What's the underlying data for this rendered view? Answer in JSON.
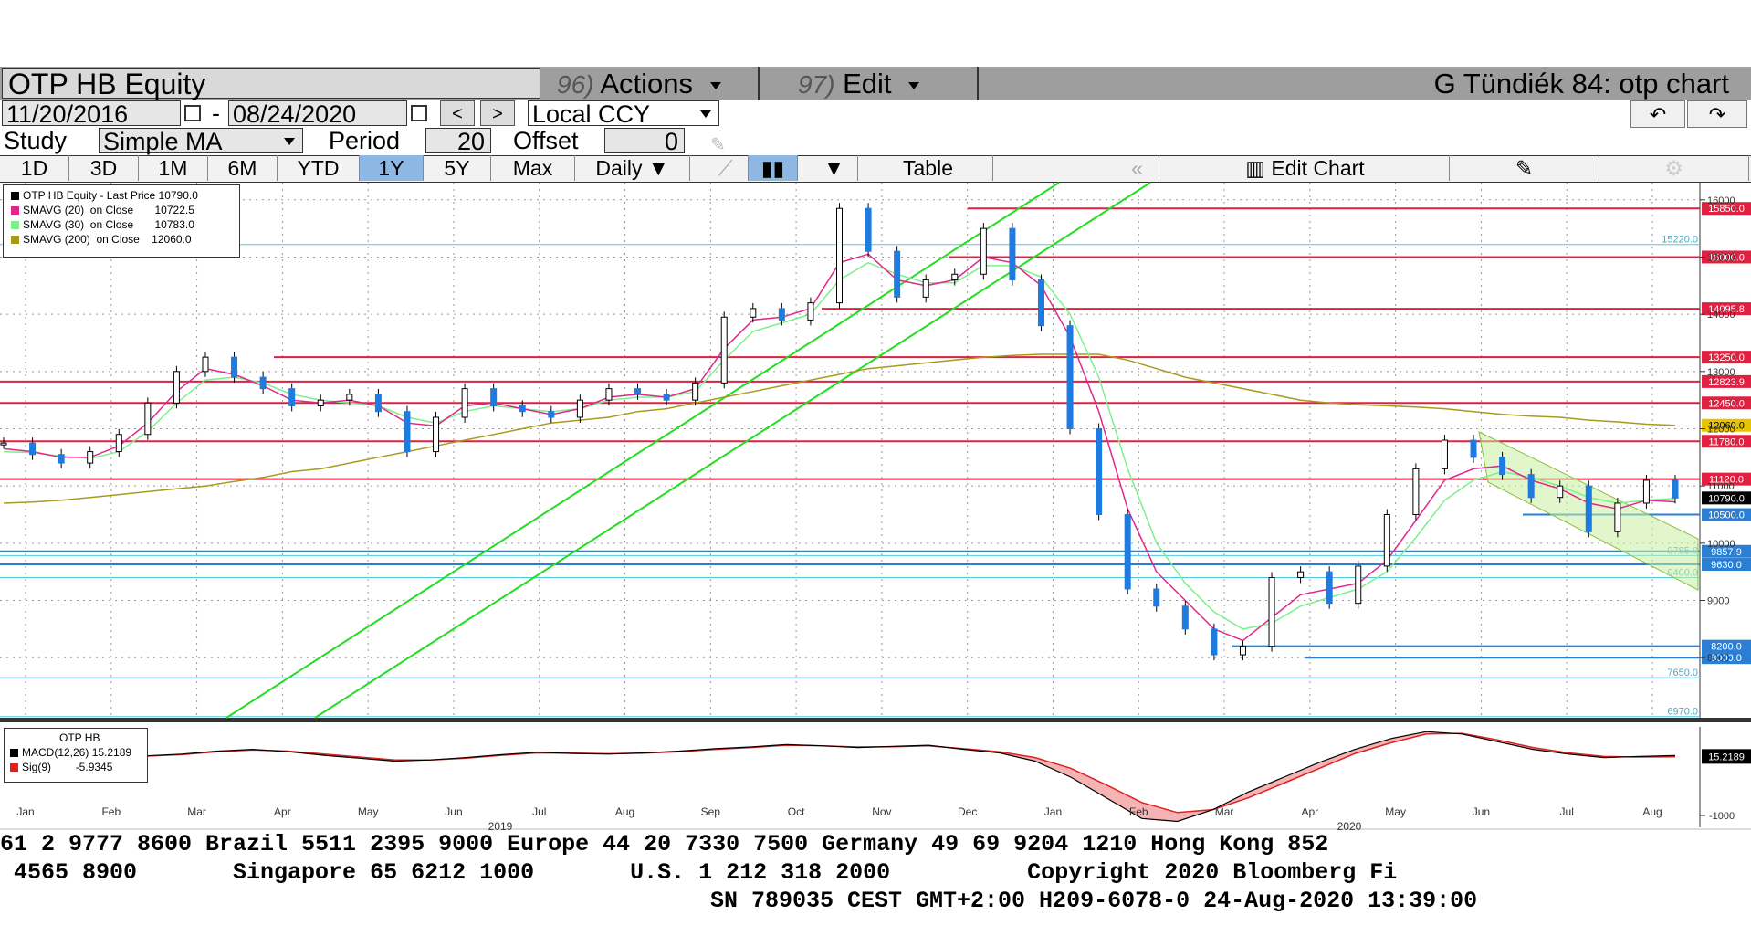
{
  "header": {
    "ticker": "OTP HB Equity",
    "actions_num": "96)",
    "actions_label": "Actions",
    "edit_num": "97)",
    "edit_label": "Edit",
    "title": "G Tündiék 84: otp chart"
  },
  "range": {
    "start": "11/20/2016",
    "dash": "-",
    "end": "08/24/2020",
    "prev": "<",
    "next": ">",
    "currency": "Local CCY"
  },
  "study": {
    "label": "Study",
    "value": "Simple MA",
    "period_label": "Period",
    "period": "20",
    "offset_label": "Offset",
    "offset": "0"
  },
  "tabs": [
    "1D",
    "3D",
    "1M",
    "6M",
    "YTD",
    "1Y",
    "5Y",
    "Max"
  ],
  "active_tab": "1Y",
  "frequency": "Daily",
  "table_label": "Table",
  "edit_chart_label": "Edit Chart",
  "legend": [
    {
      "label": "OTP HB Equity - Last Price",
      "value": "10790.0",
      "color": "#000000"
    },
    {
      "label": "SMAVG (20)  on Close",
      "value": "10722.5",
      "color": "#e0288c"
    },
    {
      "label": "SMAVG (30)  on Close",
      "value": "10783.0",
      "color": "#7cf08a"
    },
    {
      "label": "SMAVG (200)  on Close",
      "value": "12060.0",
      "color": "#a89a1e"
    }
  ],
  "macd_legend": {
    "title": "OTP HB",
    "rows": [
      {
        "label": "MACD(12,26)",
        "value": "15.2189",
        "color": "#000000"
      },
      {
        "label": "Sig(9)",
        "value": "-5.9345",
        "color": "#e02020"
      }
    ]
  },
  "chart_data": {
    "type": "line",
    "title": "OTP HB Equity",
    "x_labels": [
      "Jan",
      "Feb",
      "Mar",
      "Apr",
      "May",
      "Jun",
      "Jul",
      "Aug",
      "Sep",
      "Oct",
      "Nov",
      "Dec",
      "Jan",
      "Feb",
      "Mar",
      "Apr",
      "May",
      "Jun",
      "Jul",
      "Aug"
    ],
    "year_labels": [
      "2019",
      "2020"
    ],
    "y_ticks": [
      "16000",
      "15000",
      "14000",
      "13000",
      "12000",
      "11000",
      "10000",
      "9000",
      "8000"
    ],
    "ylim": [
      6950,
      16300
    ],
    "price_series": {
      "name": "OTP HB Equity - Last Price",
      "values": [
        11750,
        11550,
        11400,
        11600,
        11900,
        12450,
        13000,
        13250,
        12900,
        12700,
        12400,
        12500,
        12600,
        12300,
        11600,
        12200,
        12700,
        12400,
        12300,
        12200,
        12500,
        12700,
        12600,
        12500,
        12800,
        13950,
        14100,
        13900,
        14200,
        15850,
        15100,
        14300,
        14600,
        14700,
        15500,
        14600,
        13800,
        12000,
        10500,
        9200,
        8900,
        8500,
        8050,
        8200,
        9400,
        9500,
        8950,
        9600,
        10500,
        11300,
        11800,
        11500,
        11200,
        10800,
        11000,
        10200,
        10700,
        11100,
        10790
      ]
    },
    "sma20_values": [
      11650,
      11600,
      11500,
      11500,
      11700,
      12100,
      12650,
      13050,
      12950,
      12750,
      12500,
      12450,
      12500,
      12400,
      12100,
      12050,
      12400,
      12450,
      12350,
      12250,
      12350,
      12550,
      12600,
      12550,
      12700,
      13400,
      13900,
      13950,
      14100,
      14900,
      15050,
      14600,
      14500,
      14600,
      15000,
      14900,
      14500,
      13600,
      12300,
      10600,
      9500,
      9000,
      8500,
      8300,
      8700,
      9100,
      9200,
      9300,
      9700,
      10400,
      11100,
      11300,
      11350,
      11100,
      10950,
      10700,
      10600,
      10750,
      10722.5
    ],
    "sma30_values": [
      11600,
      11580,
      11520,
      11480,
      11600,
      11950,
      12450,
      12850,
      12900,
      12800,
      12600,
      12500,
      12450,
      12400,
      12200,
      12100,
      12300,
      12400,
      12350,
      12300,
      12350,
      12500,
      12550,
      12550,
      12650,
      13200,
      13700,
      13850,
      14000,
      14600,
      14900,
      14700,
      14550,
      14550,
      14850,
      14850,
      14650,
      14000,
      12900,
      11300,
      10000,
      9300,
      8800,
      8500,
      8600,
      8900,
      9050,
      9200,
      9500,
      10100,
      10750,
      11100,
      11250,
      11150,
      11000,
      10800,
      10700,
      10750,
      10783
    ],
    "sma200_values": [
      10700,
      10720,
      10750,
      10800,
      10850,
      10900,
      10950,
      11000,
      11080,
      11150,
      11250,
      11300,
      11400,
      11500,
      11600,
      11700,
      11800,
      11900,
      12000,
      12100,
      12150,
      12200,
      12300,
      12350,
      12450,
      12550,
      12650,
      12750,
      12850,
      12950,
      13050,
      13100,
      13150,
      13200,
      13250,
      13280,
      13300,
      13300,
      13300,
      13200,
      13050,
      12900,
      12800,
      12700,
      12600,
      12500,
      12450,
      12420,
      12400,
      12380,
      12350,
      12300,
      12250,
      12220,
      12200,
      12150,
      12120,
      12080,
      12060
    ],
    "horizontal_levels_red": [
      "15850.0",
      "15000.0",
      "14095.8",
      "13250.0",
      "12823.9",
      "12450.0",
      "11780.0",
      "11120.0"
    ],
    "horizontal_levels_blue": [
      "10500.0",
      "9857.9",
      "9630.0",
      "8200.0",
      "8000.0"
    ],
    "light_levels": [
      "15220.0",
      "9785.0",
      "9400.0",
      "7650.0",
      "6970.0"
    ],
    "last_price_label": "10790.0",
    "sma200_label": "12060.0",
    "macd": {
      "name": "MACD(12,26)",
      "values": [
        10,
        40,
        90,
        120,
        80,
        20,
        -30,
        -80,
        -60,
        -20,
        30,
        70,
        50,
        40,
        60,
        90,
        130,
        160,
        200,
        180,
        150,
        170,
        190,
        120,
        60,
        -80,
        -350,
        -700,
        -1050,
        -1100,
        -900,
        -600,
        -350,
        -100,
        120,
        300,
        420,
        380,
        250,
        120,
        40,
        -20,
        0,
        15.2189
      ],
      "signal": [
        5,
        30,
        80,
        110,
        90,
        40,
        -10,
        -60,
        -60,
        -30,
        20,
        60,
        55,
        45,
        55,
        80,
        120,
        150,
        190,
        180,
        160,
        165,
        180,
        130,
        80,
        -20,
        -200,
        -480,
        -780,
        -950,
        -900,
        -700,
        -450,
        -200,
        50,
        230,
        380,
        390,
        280,
        150,
        60,
        0,
        -10,
        -5.9345
      ],
      "y_ticks": [
        "-1000"
      ],
      "last_label": "15.2189"
    }
  },
  "footer": {
    "line1": "61 2 9777 8600 Brazil 5511 2395 9000 Europe 44 20 7330 7500 Germany 49 69 9204 1210 Hong Kong 852",
    "line2": " 4565 8900       Singapore 65 6212 1000       U.S. 1 212 318 2000          Copyright 2020 Bloomberg Fi",
    "line3": "SN 789035 CEST GMT+2:00 H209-6078-0 24-Aug-2020 13:39:00"
  }
}
